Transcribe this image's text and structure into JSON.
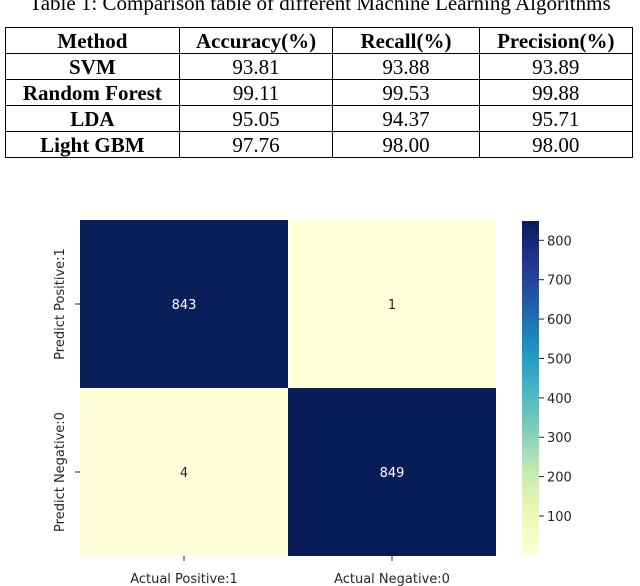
{
  "caption": "Table 1: Comparison table of different Machine Learning Algorithms",
  "table": {
    "headers": [
      "Method",
      "Accuracy(%)",
      "Recall(%)",
      "Precision(%)"
    ],
    "rows": [
      [
        "SVM",
        "93.81",
        "93.88",
        "93.89"
      ],
      [
        "Random Forest",
        "99.11",
        "99.53",
        "99.88"
      ],
      [
        "LDA",
        "95.05",
        "94.37",
        "95.71"
      ],
      [
        "Light GBM",
        "97.76",
        "98.00",
        "98.00"
      ]
    ]
  },
  "chart_data": {
    "type": "heatmap",
    "x_labels": [
      "Actual Positive:1",
      "Actual Negative:0"
    ],
    "y_labels": [
      "Predict Positive:1",
      "Predict Negative:0"
    ],
    "values": [
      [
        843,
        1
      ],
      [
        4,
        849
      ]
    ],
    "colorbar": {
      "ticks": [
        100,
        200,
        300,
        400,
        500,
        600,
        700,
        800
      ],
      "min": 1,
      "max": 849,
      "colormap": "YlGnBu"
    },
    "colors": {
      "high": "#081d58",
      "low": "#ffffd9"
    }
  }
}
